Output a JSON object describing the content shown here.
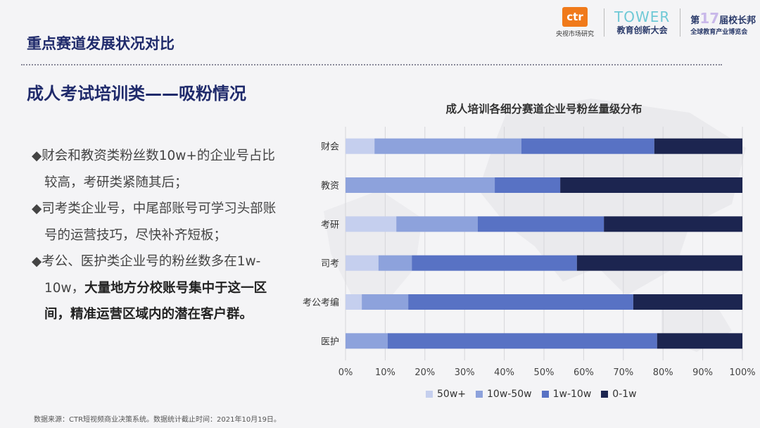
{
  "header": {
    "section_title": "重点赛道发展状况对比",
    "subtitle": "成人考试培训类——吸粉情况"
  },
  "logos": {
    "ctr": "ctr",
    "ctr_sub": "央视市场研究",
    "tower": "TOWER",
    "tower_sub": "教育创新大会",
    "expo_prefix": "第",
    "expo_num": "17",
    "expo_suffix": "届校长邦",
    "expo_sub": "全球教育产业博览会"
  },
  "bullets": [
    {
      "marker": "◆",
      "normal": "财会和教资类粉丝数10w+的企业号占比较高，考研类紧随其后；",
      "bold": ""
    },
    {
      "marker": "◆",
      "normal": "司考类企业号，中尾部账号可学习头部账号的运营技巧，尽快补齐短板；",
      "bold": ""
    },
    {
      "marker": "◆",
      "normal": "考公、医护类企业号的粉丝数多在1w-10w，",
      "bold": "大量地方分校账号集中于这一区间，精准运营区域内的潜在客户群。"
    }
  ],
  "footer": "数据来源：CTR短视频商业决策系统。数据统计截止时间：2021年10月19日。",
  "chart_data": {
    "type": "bar",
    "orientation": "horizontal",
    "stacked": "percent",
    "title": "成人培训各细分赛道企业号粉丝量级分布",
    "categories": [
      "财会",
      "教资",
      "考研",
      "司考",
      "考公考编",
      "医护"
    ],
    "series": [
      {
        "name": "50w+",
        "color": "#c5cfee",
        "values": [
          7.3,
          0,
          12.8,
          8.3,
          4.1,
          0
        ]
      },
      {
        "name": "10w-50w",
        "color": "#8da2dc",
        "values": [
          37.0,
          37.6,
          20.5,
          8.4,
          11.7,
          10.6
        ]
      },
      {
        "name": "1w-10w",
        "color": "#5872c4",
        "values": [
          33.5,
          16.5,
          31.8,
          41.6,
          56.7,
          67.9
        ]
      },
      {
        "name": "0-1w",
        "color": "#1c2550",
        "values": [
          22.2,
          45.9,
          34.9,
          41.7,
          27.5,
          21.5
        ]
      }
    ],
    "xlim": [
      0,
      100
    ],
    "xticks": [
      "0%",
      "10%",
      "20%",
      "30%",
      "40%",
      "50%",
      "60%",
      "70%",
      "80%",
      "90%",
      "100%"
    ],
    "grid": true,
    "legend": "bottom"
  }
}
